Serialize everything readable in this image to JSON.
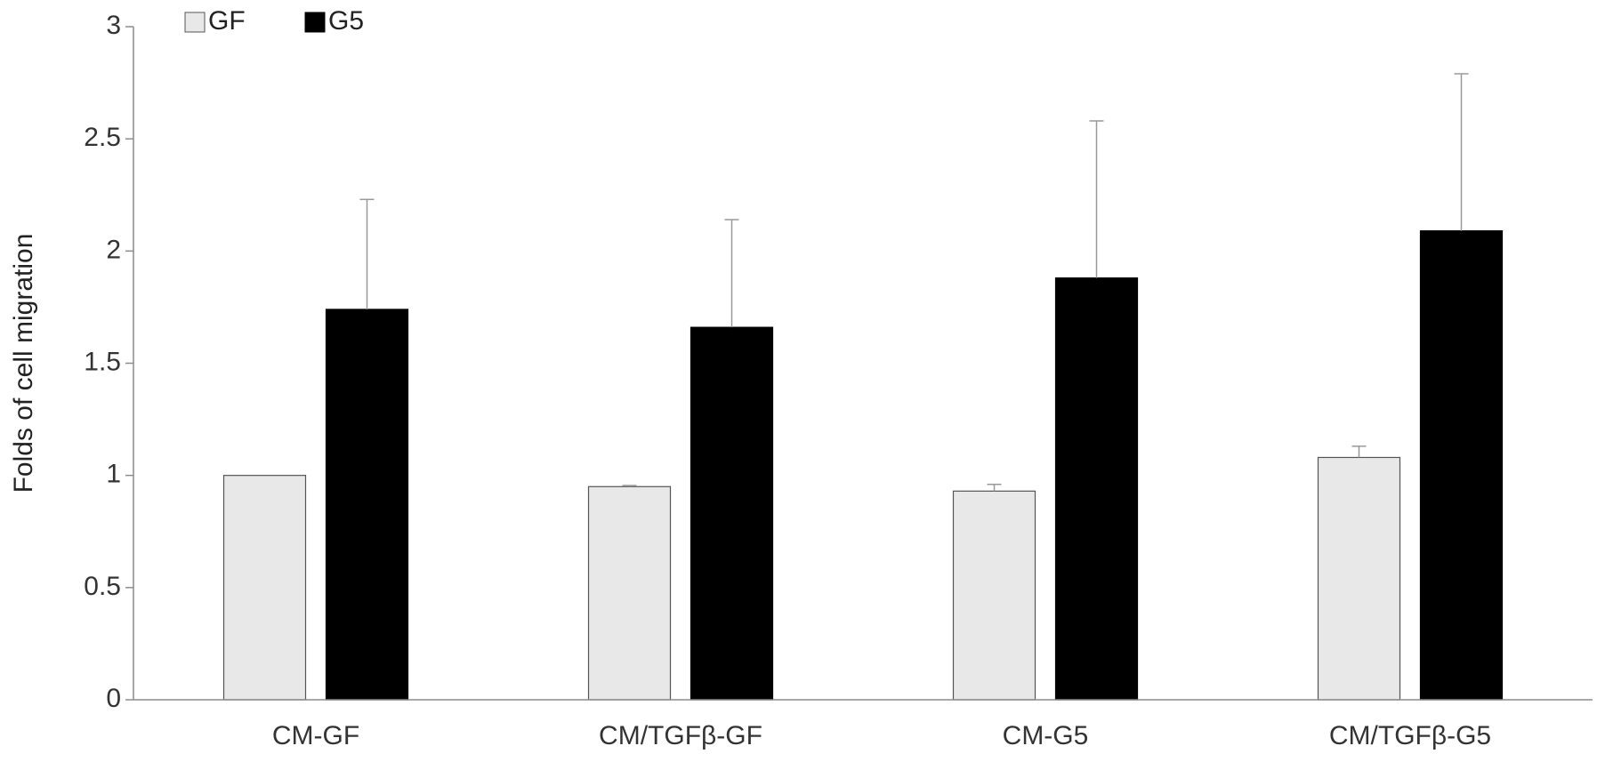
{
  "chart_data": {
    "type": "bar",
    "title": "",
    "xlabel": "",
    "ylabel": "Folds of cell migration",
    "ylim": [
      0,
      3
    ],
    "yticks": [
      0,
      0.5,
      1,
      1.5,
      2,
      2.5,
      3
    ],
    "ytick_labels": [
      "0",
      "0.5",
      "1",
      "1.5",
      "2",
      "2.5",
      "3"
    ],
    "grid": false,
    "legend_position": "top-left",
    "categories": [
      "CM-GF",
      "CM/TGFβ-GF",
      "CM-G5",
      "CM/TGFβ-G5"
    ],
    "series": [
      {
        "name": "GF",
        "color": "#e8e8e8",
        "values": [
          1.0,
          0.95,
          0.93,
          1.08
        ],
        "error": [
          0.0,
          0.005,
          0.03,
          0.05
        ]
      },
      {
        "name": "G5",
        "color": "#000000",
        "values": [
          1.74,
          1.66,
          1.88,
          2.09
        ],
        "error": [
          0.49,
          0.48,
          0.7,
          0.7
        ]
      }
    ]
  }
}
